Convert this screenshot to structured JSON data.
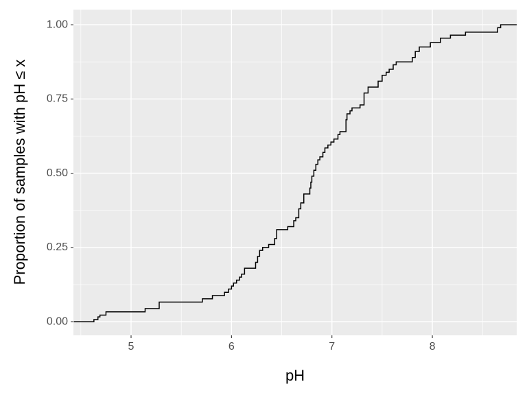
{
  "chart_data": {
    "type": "step",
    "x_label": "pH",
    "y_label": "Proportion of samples with pH ≤ x",
    "x": [
      4.43,
      4.63,
      4.67,
      4.69,
      4.75,
      5.14,
      5.28,
      5.71,
      5.81,
      5.93,
      5.97,
      6.0,
      6.02,
      6.05,
      6.08,
      6.1,
      6.13,
      6.24,
      6.26,
      6.28,
      6.31,
      6.37,
      6.43,
      6.45,
      6.56,
      6.62,
      6.64,
      6.67,
      6.69,
      6.72,
      6.78,
      6.79,
      6.8,
      6.82,
      6.84,
      6.86,
      6.88,
      6.91,
      6.93,
      6.96,
      6.99,
      7.02,
      7.06,
      7.08,
      7.14,
      7.15,
      7.18,
      7.2,
      7.28,
      7.32,
      7.36,
      7.46,
      7.5,
      7.54,
      7.57,
      7.61,
      7.64,
      7.8,
      7.83,
      7.87,
      7.98,
      8.08,
      8.18,
      8.33,
      8.65,
      8.68,
      8.84
    ],
    "values": [
      0,
      0.007,
      0.016,
      0.022,
      0.033,
      0.044,
      0.066,
      0.077,
      0.088,
      0.099,
      0.11,
      0.12,
      0.13,
      0.14,
      0.15,
      0.16,
      0.18,
      0.2,
      0.22,
      0.24,
      0.25,
      0.26,
      0.28,
      0.31,
      0.32,
      0.34,
      0.35,
      0.38,
      0.4,
      0.43,
      0.45,
      0.47,
      0.49,
      0.51,
      0.53,
      0.545,
      0.555,
      0.57,
      0.585,
      0.595,
      0.605,
      0.615,
      0.63,
      0.64,
      0.68,
      0.7,
      0.71,
      0.72,
      0.73,
      0.77,
      0.79,
      0.81,
      0.83,
      0.84,
      0.85,
      0.865,
      0.875,
      0.89,
      0.91,
      0.925,
      0.94,
      0.955,
      0.965,
      0.975,
      0.99,
      1.0,
      1.0
    ],
    "color": "#000000",
    "xlim": [
      4.426,
      8.84
    ],
    "ylim": [
      -0.046,
      1.051
    ],
    "xticks": [
      5,
      6,
      7,
      8
    ],
    "yticks": [
      {
        "value": 0,
        "label": "0.00"
      },
      {
        "value": 0.25,
        "label": "0.25"
      },
      {
        "value": 0.5,
        "label": "0.50"
      },
      {
        "value": 0.75,
        "label": "0.75"
      },
      {
        "value": 1,
        "label": "1.00"
      }
    ],
    "grid": true
  }
}
